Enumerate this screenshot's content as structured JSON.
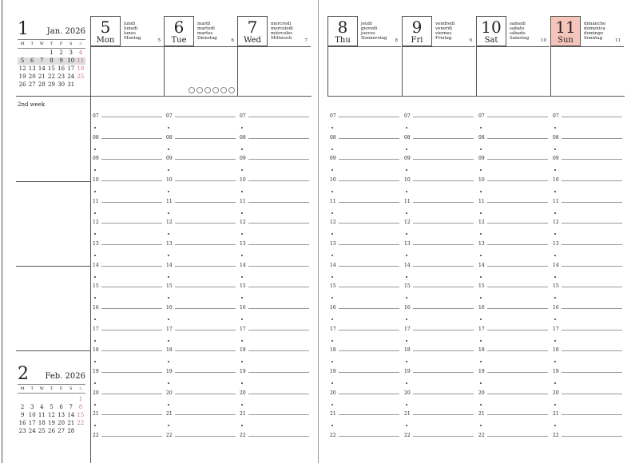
{
  "week_label": "2nd week",
  "hours": [
    "07",
    "08",
    "09",
    "10",
    "11",
    "12",
    "13",
    "14",
    "15",
    "16",
    "17",
    "18",
    "19",
    "20",
    "21",
    "22"
  ],
  "mini_calendars": [
    {
      "month_num": "1",
      "month_year": "Jan. 2026",
      "weekdays": [
        "M",
        "T",
        "W",
        "T",
        "F",
        "S",
        "S"
      ],
      "days": [
        "",
        "",
        "",
        "1",
        "2",
        "3",
        "4",
        "5",
        "6",
        "7",
        "8",
        "9",
        "10",
        "11",
        "12",
        "13",
        "14",
        "15",
        "16",
        "17",
        "18",
        "19",
        "20",
        "21",
        "22",
        "23",
        "24",
        "25",
        "26",
        "27",
        "28",
        "29",
        "30",
        "31",
        ""
      ],
      "highlight_week_row": 1
    },
    {
      "month_num": "2",
      "month_year": "Feb. 2026",
      "weekdays": [
        "M",
        "T",
        "W",
        "T",
        "F",
        "S",
        "S"
      ],
      "days": [
        "",
        "",
        "",
        "",
        "",
        "",
        "1",
        "2",
        "3",
        "4",
        "5",
        "6",
        "7",
        "8",
        "9",
        "10",
        "11",
        "12",
        "13",
        "14",
        "15",
        "16",
        "17",
        "18",
        "19",
        "20",
        "21",
        "22",
        "23",
        "24",
        "25",
        "26",
        "27",
        "28",
        ""
      ],
      "highlight_week_row": -1
    }
  ],
  "days": [
    {
      "num": "5",
      "abbr": "Mon",
      "langs": [
        "lundi",
        "lunedì",
        "lunes",
        "Montag"
      ],
      "small": "5",
      "sunday": false
    },
    {
      "num": "6",
      "abbr": "Tue",
      "langs": [
        "mardi",
        "martedì",
        "martes",
        "Dienstag"
      ],
      "small": "6",
      "sunday": false
    },
    {
      "num": "7",
      "abbr": "Wed",
      "langs": [
        "mercredi",
        "mercoledì",
        "miércoles",
        "Mittwoch"
      ],
      "small": "7",
      "sunday": false
    },
    {
      "num": "8",
      "abbr": "Thu",
      "langs": [
        "jeudi",
        "giovedì",
        "jueves",
        "Donnerstag"
      ],
      "small": "8",
      "sunday": false
    },
    {
      "num": "9",
      "abbr": "Fri",
      "langs": [
        "vendredi",
        "venerdì",
        "viernes",
        "Freitag"
      ],
      "small": "9",
      "sunday": false
    },
    {
      "num": "10",
      "abbr": "Sat",
      "langs": [
        "samedi",
        "sabato",
        "sábado",
        "Samstag"
      ],
      "small": "10",
      "sunday": false
    },
    {
      "num": "11",
      "abbr": "Sun",
      "langs": [
        "dimanche",
        "domenica",
        "domingo",
        "Sonntag"
      ],
      "small": "11",
      "sunday": true
    }
  ],
  "colors": {
    "sunday_highlight": "#f5c4bb",
    "sunday_text": "#c77",
    "lines": "#555"
  }
}
